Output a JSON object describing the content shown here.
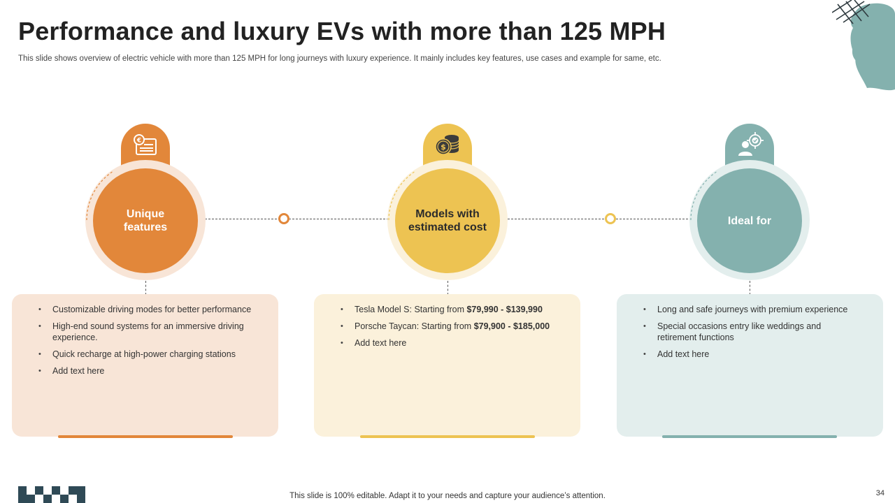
{
  "slide": {
    "title": "Performance and luxury EVs with more than 125 MPH",
    "subtitle": "This slide shows overview of electric vehicle with more than 125 MPH for long journeys with luxury experience. It mainly includes key features, use cases and example for same, etc.",
    "footer_note": "This slide is 100% editable. Adapt it to your needs and capture your audience’s attention.",
    "page_number": "34"
  },
  "colors": {
    "orange": "#E2873A",
    "orange_light": "#F8E5D7",
    "yellow": "#EDC352",
    "yellow_light": "#FBF1DB",
    "teal": "#84B1AE",
    "teal_light": "#E3EEED",
    "dark": "#2F4A56"
  },
  "columns": [
    {
      "label_line1": "Unique",
      "label_line2": "features",
      "icon": "price-tag-document-icon",
      "items": [
        {
          "text": "Customizable driving modes for better performance"
        },
        {
          "text": "High-end sound systems for an immersive driving experience."
        },
        {
          "text": "Quick recharge at high-power charging stations"
        },
        {
          "text": "Add text here"
        }
      ]
    },
    {
      "label_line1": "Models with",
      "label_line2": "estimated cost",
      "icon": "coin-stack-icon",
      "items": [
        {
          "pre": "Tesla Model S: Starting from ",
          "bold": "$79,990 - $139,990"
        },
        {
          "pre": "Porsche Taycan: Starting from ",
          "bold": "$79,900 - $185,000"
        },
        {
          "text": "Add text here"
        }
      ]
    },
    {
      "label_line1": "Ideal for",
      "label_line2": "",
      "icon": "target-user-icon",
      "items": [
        {
          "text": "Long and safe journeys with premium experience"
        },
        {
          "text": "Special occasions entry like weddings and retirement functions"
        },
        {
          "text": "Add text here"
        }
      ]
    }
  ]
}
